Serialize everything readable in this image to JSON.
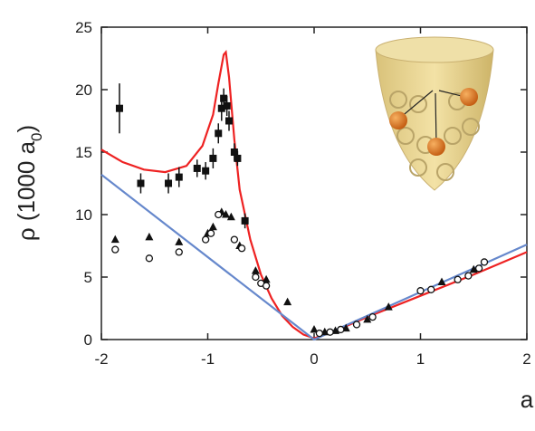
{
  "chart_data": {
    "type": "scatter",
    "xlabel": "a",
    "ylabel": [
      "ρ (1000 a",
      "0",
      ")"
    ],
    "xlim": [
      -2,
      2
    ],
    "xticks": [
      -2,
      -1,
      0,
      1,
      2
    ],
    "ylim": [
      0,
      25
    ],
    "yticks": [
      0,
      5,
      10,
      15,
      20,
      25
    ],
    "series": [
      {
        "marker": "line",
        "color": "#ee2222",
        "x": [
          -2,
          -1.8,
          -1.6,
          -1.4,
          -1.2,
          -1.05,
          -0.95,
          -0.9,
          -0.85,
          -0.83,
          -0.8,
          -0.75,
          -0.7,
          -0.6,
          -0.5,
          -0.4,
          -0.3,
          -0.2,
          -0.1,
          0,
          0.1,
          0.2,
          0.5,
          1,
          1.5,
          2
        ],
        "values": [
          15.2,
          14.2,
          13.6,
          13.4,
          13.9,
          15.5,
          18,
          20.5,
          22.8,
          23,
          21,
          16,
          12,
          8,
          5.2,
          3.3,
          1.9,
          1.0,
          0.4,
          0.1,
          0.4,
          0.7,
          1.8,
          3.5,
          5.2,
          7.0
        ]
      },
      {
        "marker": "line",
        "color": "#6688cc",
        "x": [
          -2,
          0,
          2
        ],
        "values": [
          13.2,
          0,
          7.6
        ]
      },
      {
        "marker": "square",
        "color": "#111111",
        "x": [
          -1.83,
          -1.63,
          -1.37,
          -1.27,
          -1.1,
          -1.02,
          -0.95,
          -0.9,
          -0.87,
          -0.85,
          -0.82,
          -0.8,
          -0.75,
          -0.72,
          -0.65
        ],
        "values": [
          18.5,
          12.5,
          12.5,
          13.0,
          13.7,
          13.5,
          14.5,
          16.5,
          18.5,
          19.3,
          18.7,
          17.5,
          15.0,
          14.5,
          9.5
        ],
        "errors": [
          2,
          0.8,
          0.8,
          0.8,
          0.7,
          0.7,
          0.8,
          0.8,
          1,
          0.8,
          0.8,
          0.8,
          0.7,
          0.6,
          0.6
        ]
      },
      {
        "marker": "triangle",
        "color": "#111111",
        "x": [
          -1.87,
          -1.55,
          -1.27,
          -1.0,
          -0.95,
          -0.87,
          -0.83,
          -0.78,
          -0.7,
          -0.55,
          -0.45,
          -0.25,
          0,
          0.1,
          0.2,
          0.3,
          0.5,
          0.7,
          1.2,
          1.5
        ],
        "values": [
          8.0,
          8.2,
          7.8,
          8.5,
          9.0,
          10.2,
          10.0,
          9.8,
          7.5,
          5.5,
          4.8,
          3.0,
          0.8,
          0.6,
          0.7,
          0.9,
          1.6,
          2.6,
          4.6,
          5.6
        ]
      },
      {
        "marker": "circle",
        "color": "#111111",
        "x": [
          -1.87,
          -1.55,
          -1.27,
          -1.02,
          -0.97,
          -0.9,
          -0.75,
          -0.68,
          -0.55,
          -0.5,
          -0.45,
          0.05,
          0.15,
          0.25,
          0.4,
          0.55,
          1.0,
          1.1,
          1.35,
          1.45,
          1.55,
          1.6
        ],
        "values": [
          7.2,
          6.5,
          7.0,
          8.0,
          8.5,
          10,
          8.0,
          7.3,
          5.0,
          4.5,
          4.3,
          0.5,
          0.6,
          0.8,
          1.2,
          1.8,
          3.9,
          4.0,
          4.8,
          5.1,
          5.7,
          6.2
        ]
      }
    ]
  }
}
